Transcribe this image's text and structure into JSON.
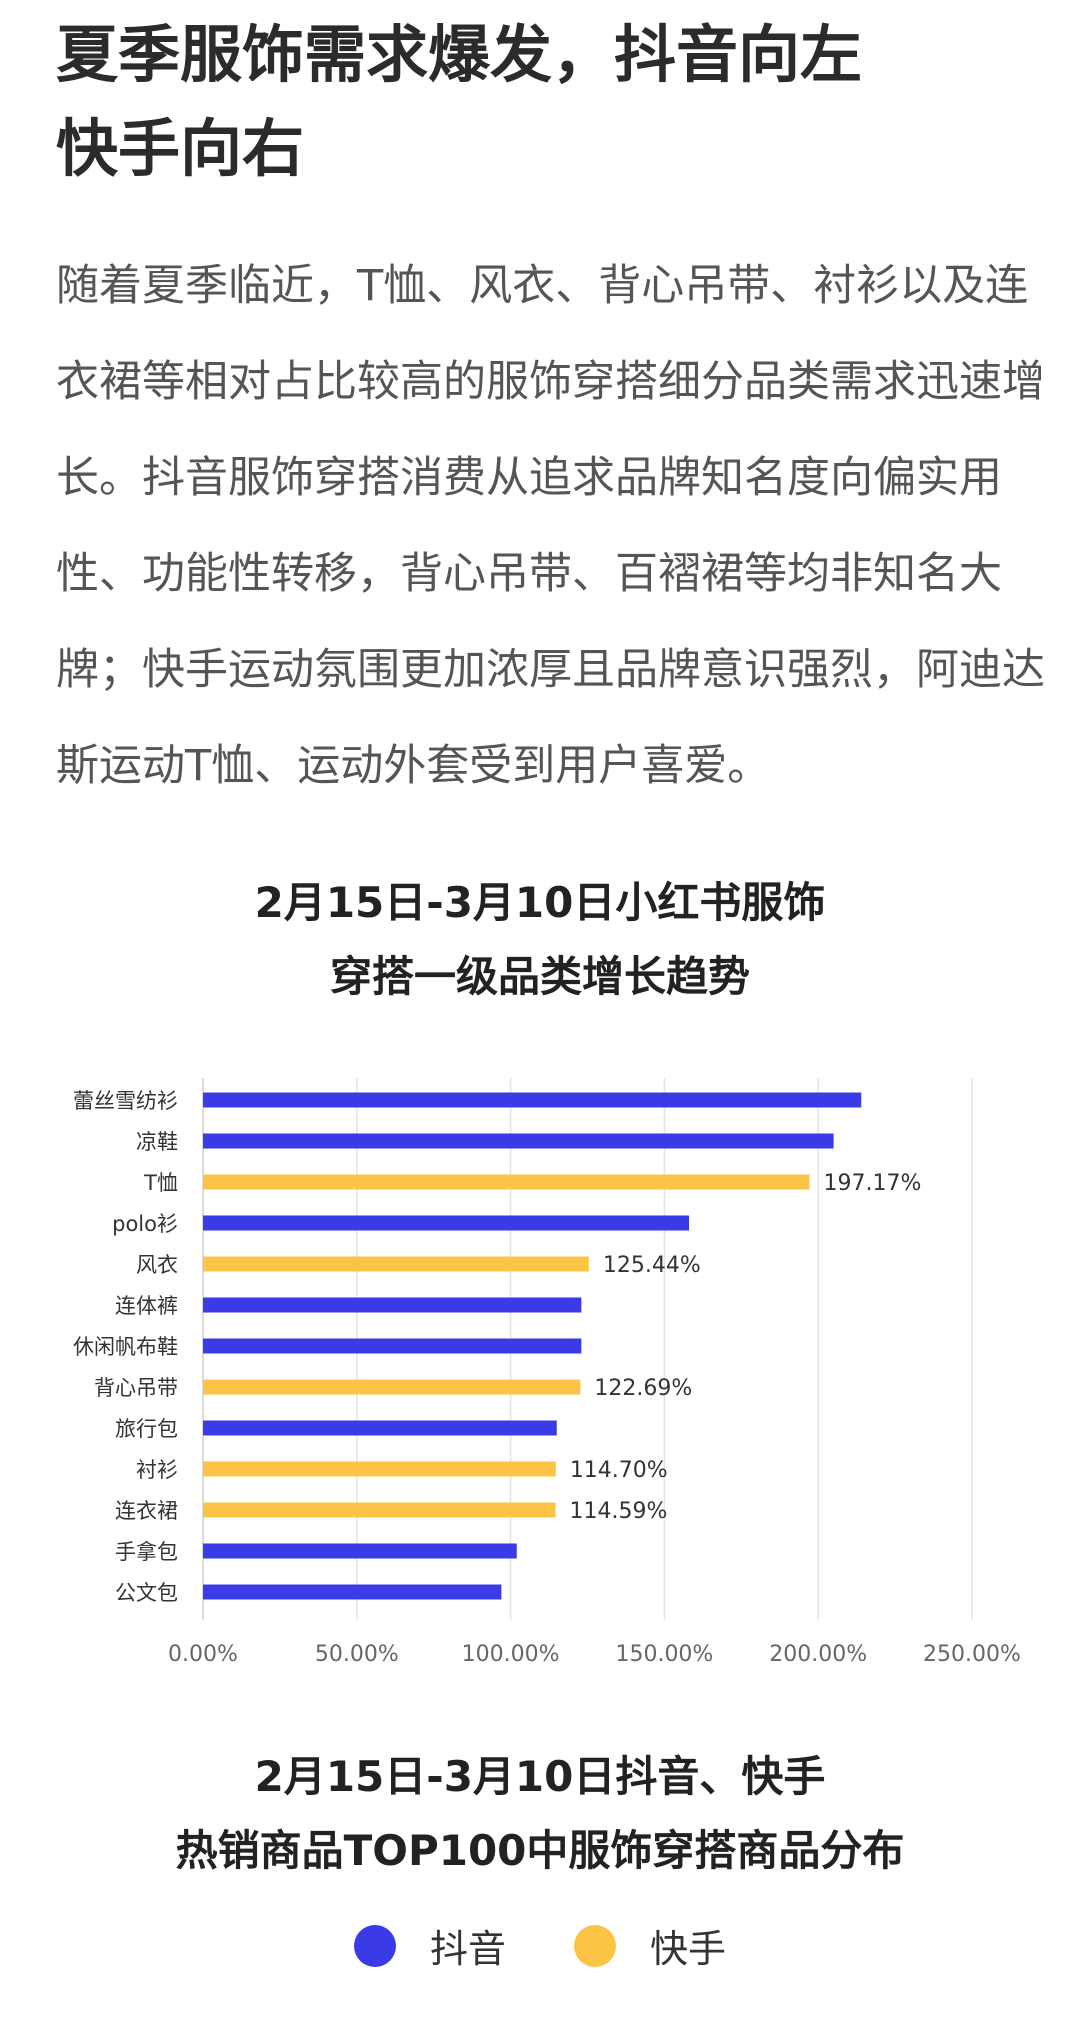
{
  "article": {
    "headline_line1": "夏季服饰需求爆发，抖音向左",
    "headline_line2": "快手向右",
    "body": "随着夏季临近，T恤、风衣、背心吊带、衬衫以及连衣裙等相对占比较高的服饰穿搭细分品类需求迅速增长。抖音服饰穿搭消费从追求品牌知名度向偏实用性、功能性转移，背心吊带、百褶裙等均非知名大牌；快手运动氛围更加浓厚且品牌意识强烈，阿迪达斯运动T恤、运动外套受到用户喜爱。"
  },
  "chart1": {
    "title_line1": "2月15日-3月10日小红书服饰",
    "title_line2": "穿搭一级品类增长趋势"
  },
  "chart2": {
    "title_line1": "2月15日-3月10日抖音、快手",
    "title_line2": "热销商品TOP100中服饰穿搭商品分布"
  },
  "legend": {
    "items": [
      {
        "label": "抖音",
        "color": "#3a3ae6"
      },
      {
        "label": "快手",
        "color": "#fcc444"
      }
    ]
  },
  "chart_data": {
    "type": "bar",
    "orientation": "horizontal",
    "title": "2月15日-3月10日小红书服饰穿搭一级品类增长趋势",
    "xlabel": "",
    "ylabel": "",
    "xlim": [
      0,
      250
    ],
    "ticks": [
      "0.00%",
      "50.00%",
      "100.00%",
      "150.00%",
      "200.00%",
      "250.00%"
    ],
    "grid": true,
    "categories": [
      "蕾丝雪纺衫",
      "凉鞋",
      "T恤",
      "polo衫",
      "风衣",
      "连体裤",
      "休闲帆布鞋",
      "背心吊带",
      "旅行包",
      "衬衫",
      "连衣裙",
      "手拿包",
      "公文包"
    ],
    "values": [
      214,
      205,
      197.17,
      158,
      125.44,
      123,
      123,
      122.69,
      115,
      114.7,
      114.59,
      102,
      97
    ],
    "labels": [
      "",
      "",
      "197.17%",
      "",
      "125.44%",
      "",
      "",
      "122.69%",
      "",
      "114.70%",
      "114.59%",
      "",
      ""
    ],
    "colors": [
      "#3a3ae6",
      "#3a3ae6",
      "#fcc444",
      "#3a3ae6",
      "#fcc444",
      "#3a3ae6",
      "#3a3ae6",
      "#fcc444",
      "#3a3ae6",
      "#fcc444",
      "#fcc444",
      "#3a3ae6",
      "#3a3ae6"
    ]
  }
}
